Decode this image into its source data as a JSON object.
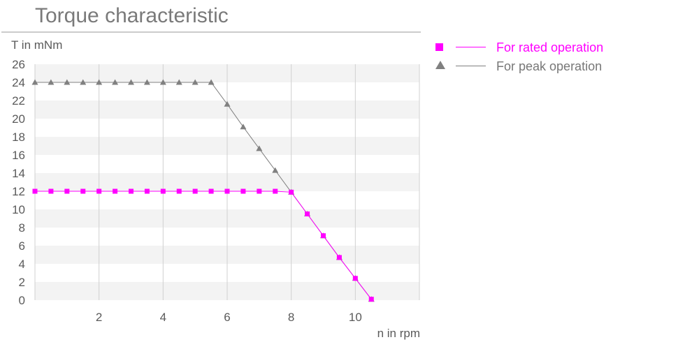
{
  "chart_data": {
    "type": "line",
    "title": "Torque characteristic",
    "ylabel": "T in mNm",
    "xlabel": "n in rpm",
    "xlim": [
      0,
      12
    ],
    "ylim": [
      0,
      26
    ],
    "xticks": [
      2,
      4,
      6,
      8,
      10
    ],
    "yticks": [
      0,
      2,
      4,
      6,
      8,
      10,
      12,
      14,
      16,
      18,
      20,
      22,
      24,
      26
    ],
    "grid": "horizontal bands and vertical gridlines",
    "legend_position": "right",
    "series": [
      {
        "name": "For rated operation",
        "marker": "square",
        "color": "#ff00ff",
        "x": [
          0,
          0.5,
          1,
          1.5,
          2,
          2.5,
          3,
          3.5,
          4,
          4.5,
          5,
          5.5,
          6,
          6.5,
          7,
          7.5,
          8,
          8.5,
          9,
          9.5,
          10,
          10.5
        ],
        "y": [
          12,
          12,
          12,
          12,
          12,
          12,
          12,
          12,
          12,
          12,
          12,
          12,
          12,
          12,
          12,
          12,
          11.9,
          9.5,
          7.1,
          4.7,
          2.4,
          0.1
        ]
      },
      {
        "name": "For peak operation",
        "marker": "triangle",
        "color": "#808080",
        "x": [
          0,
          0.5,
          1,
          1.5,
          2,
          2.5,
          3,
          3.5,
          4,
          4.5,
          5,
          5.5,
          6,
          6.5,
          7,
          7.5,
          8,
          8.5,
          9,
          9.5,
          10,
          10.5
        ],
        "y": [
          24,
          24,
          24,
          24,
          24,
          24,
          24,
          24,
          24,
          24,
          24,
          24,
          21.6,
          19.1,
          16.7,
          14.3,
          11.9,
          9.5,
          7.1,
          4.7,
          2.4,
          0.1
        ]
      }
    ]
  }
}
